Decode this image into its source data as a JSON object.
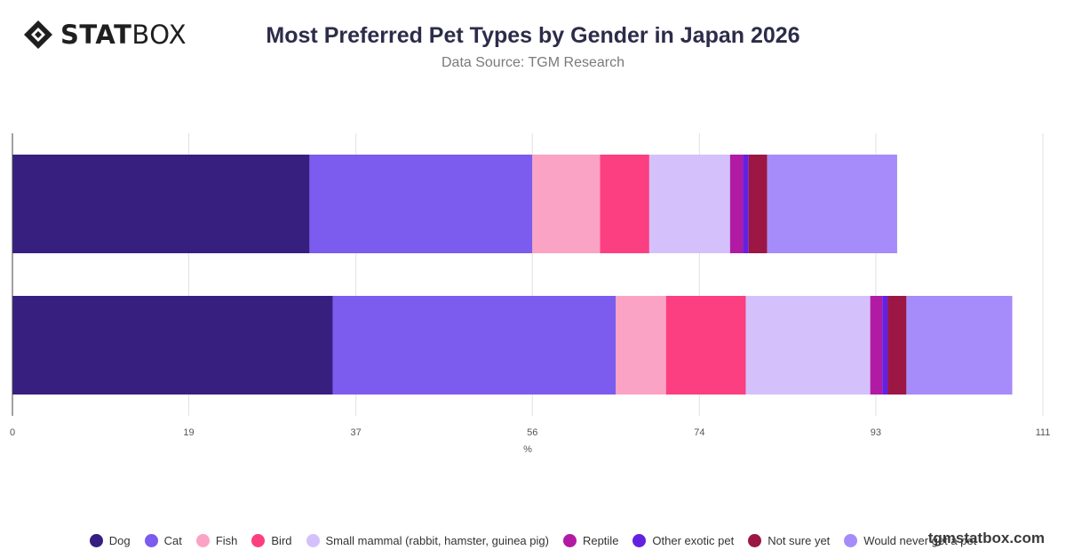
{
  "brand": {
    "logo_text_bold": "STAT",
    "logo_text_light": "BOX",
    "watermark": "tgmstatbox.com"
  },
  "header": {
    "title": "Most Preferred Pet Types by Gender in Japan 2026",
    "subtitle": "Data Source: TGM Research"
  },
  "chart_data": {
    "type": "bar",
    "orientation": "horizontal",
    "stacked": true,
    "title": "Most Preferred Pet Types by Gender in Japan 2026",
    "subtitle": "Data Source: TGM Research",
    "xlabel": "%",
    "ylabel": "",
    "xlim": [
      0,
      111
    ],
    "xticks": [
      0,
      19,
      37,
      56,
      74,
      93,
      111
    ],
    "categories": [
      "",
      ""
    ],
    "grid": true,
    "legend_position": "bottom",
    "series": [
      {
        "name": "Dog",
        "color": "#371F80",
        "values": [
          32,
          34.5
        ]
      },
      {
        "name": "Cat",
        "color": "#7B5CEE",
        "values": [
          24,
          30.5
        ]
      },
      {
        "name": "Fish",
        "color": "#FBA3C4",
        "values": [
          7.3,
          5.4
        ]
      },
      {
        "name": "Bird",
        "color": "#FB3F80",
        "values": [
          5.3,
          8.6
        ]
      },
      {
        "name": "Small mammal (rabbit, hamster, guinea pig)",
        "color": "#D4C1FC",
        "values": [
          8.7,
          13.4
        ]
      },
      {
        "name": "Reptile",
        "color": "#B11BA4",
        "values": [
          1.4,
          1.3
        ]
      },
      {
        "name": "Other exotic pet",
        "color": "#6421E0",
        "values": [
          0.6,
          0.6
        ]
      },
      {
        "name": "Not sure yet",
        "color": "#9C1744",
        "values": [
          2.0,
          2.0
        ]
      },
      {
        "name": "Would never get a pet",
        "color": "#A68BFA",
        "values": [
          14.0,
          11.4
        ]
      }
    ]
  }
}
